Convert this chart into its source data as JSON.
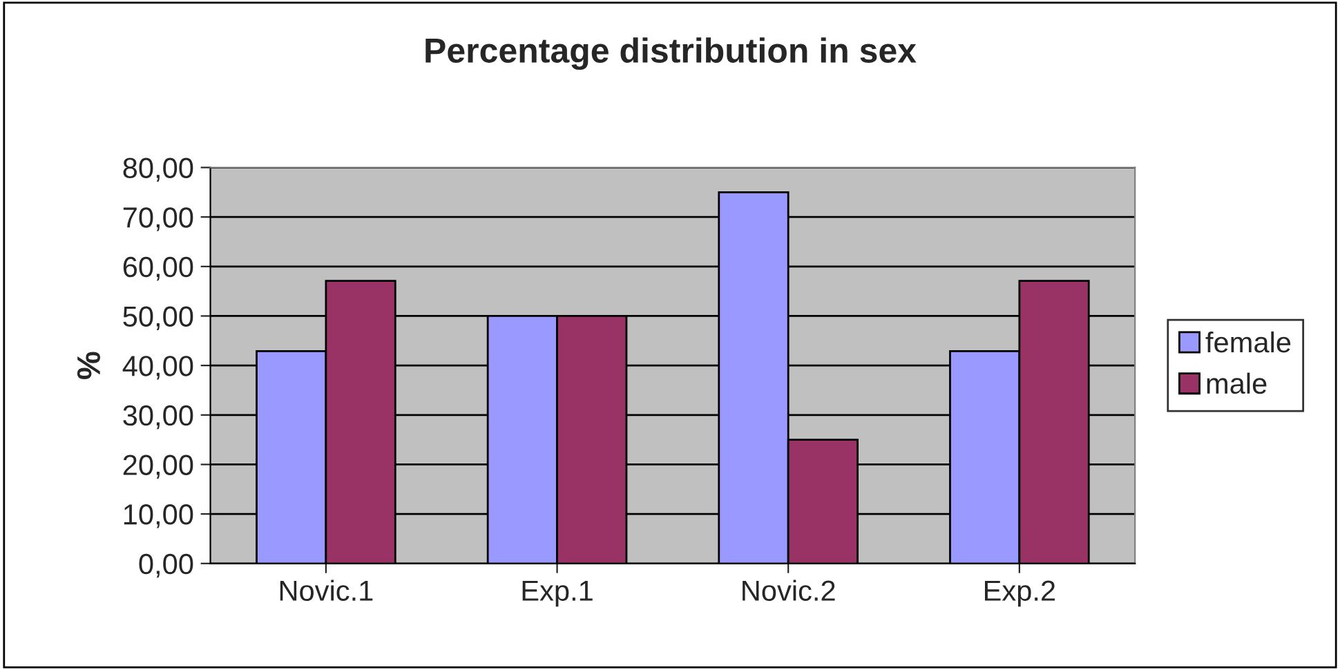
{
  "chart_data": {
    "type": "bar",
    "title": "Percentage distribution in sex",
    "ylabel": "%",
    "categories": [
      "Novic.1",
      "Exp.1",
      "Novic.2",
      "Exp.2"
    ],
    "series": [
      {
        "name": "female",
        "color": "#9999ff",
        "values": [
          42.9,
          50,
          75,
          42.9
        ]
      },
      {
        "name": "male",
        "color": "#993366",
        "values": [
          57.1,
          50,
          25,
          57.1
        ]
      }
    ],
    "ylim": [
      0,
      80
    ],
    "yticks": [
      {
        "value": 0,
        "label": "0,00"
      },
      {
        "value": 10,
        "label": "10,00"
      },
      {
        "value": 20,
        "label": "20,00"
      },
      {
        "value": 30,
        "label": "30,00"
      },
      {
        "value": 40,
        "label": "40,00"
      },
      {
        "value": 50,
        "label": "50,00"
      },
      {
        "value": 60,
        "label": "60,00"
      },
      {
        "value": 70,
        "label": "70,00"
      },
      {
        "value": 80,
        "label": "80,00"
      }
    ],
    "grid": "y",
    "legend": "right"
  }
}
